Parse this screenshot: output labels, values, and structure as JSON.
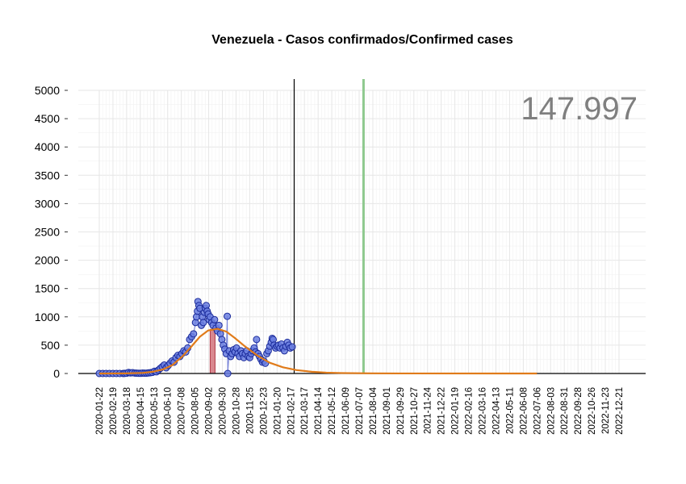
{
  "chart_data": {
    "type": "scatter",
    "title": "Venezuela - Casos confirmados/Confirmed cases",
    "xlabel": "",
    "ylabel": "",
    "total_label": "147.997",
    "ylim": [
      -200,
      5200
    ],
    "y_ticks": [
      0,
      500,
      1000,
      1500,
      2000,
      2500,
      3000,
      3500,
      4000,
      4500,
      5000
    ],
    "x_range": [
      "2020-01-22",
      "2022-12-21"
    ],
    "x_tick_labels": [
      "2020-01-22",
      "2020-02-19",
      "2020-03-18",
      "2020-04-15",
      "2020-05-13",
      "2020-06-10",
      "2020-07-08",
      "2020-08-05",
      "2020-09-02",
      "2020-09-30",
      "2020-10-28",
      "2020-11-25",
      "2020-12-23",
      "2021-01-20",
      "2021-02-17",
      "2021-03-17",
      "2021-04-14",
      "2021-05-12",
      "2021-06-09",
      "2021-07-07",
      "2021-08-04",
      "2021-09-01",
      "2021-09-29",
      "2021-10-27",
      "2021-11-24",
      "2021-12-22",
      "2022-01-19",
      "2022-02-16",
      "2022-03-16",
      "2022-04-13",
      "2022-05-11",
      "2022-06-08",
      "2022-07-06",
      "2022-08-03",
      "2022-08-31",
      "2022-09-28",
      "2022-10-26",
      "2022-11-23",
      "2022-12-21"
    ],
    "grid": true,
    "vertical_markers": [
      {
        "date": "2021-02-24",
        "color": "#000000"
      },
      {
        "date": "2021-07-16",
        "color": "#8fc98f"
      }
    ],
    "highlight_bar": {
      "start": "2020-09-05",
      "end": "2020-09-15",
      "value": 780,
      "color": "#d9888f"
    },
    "fit_curve": {
      "color": "#e07b1a",
      "points": [
        [
          "2020-01-22",
          0
        ],
        [
          "2020-03-15",
          2
        ],
        [
          "2020-04-20",
          10
        ],
        [
          "2020-05-10",
          30
        ],
        [
          "2020-05-31",
          70
        ],
        [
          "2020-06-20",
          150
        ],
        [
          "2020-07-10",
          300
        ],
        [
          "2020-07-28",
          470
        ],
        [
          "2020-08-15",
          650
        ],
        [
          "2020-09-01",
          760
        ],
        [
          "2020-09-20",
          790
        ],
        [
          "2020-10-08",
          740
        ],
        [
          "2020-10-25",
          630
        ],
        [
          "2020-11-15",
          480
        ],
        [
          "2020-12-10",
          320
        ],
        [
          "2021-01-05",
          190
        ],
        [
          "2021-02-01",
          110
        ],
        [
          "2021-03-01",
          60
        ],
        [
          "2021-04-01",
          30
        ],
        [
          "2021-05-01",
          15
        ],
        [
          "2021-06-01",
          8
        ],
        [
          "2021-08-01",
          3
        ],
        [
          "2021-10-01",
          1
        ],
        [
          "2022-07-06",
          0
        ]
      ]
    },
    "series": [
      {
        "name": "",
        "color": "#3d4ec8",
        "points": [
          [
            "2020-01-22",
            0
          ],
          [
            "2020-01-29",
            0
          ],
          [
            "2020-02-05",
            0
          ],
          [
            "2020-02-12",
            0
          ],
          [
            "2020-02-19",
            0
          ],
          [
            "2020-02-26",
            0
          ],
          [
            "2020-03-04",
            0
          ],
          [
            "2020-03-11",
            0
          ],
          [
            "2020-03-14",
            2
          ],
          [
            "2020-03-18",
            5
          ],
          [
            "2020-03-22",
            18
          ],
          [
            "2020-03-26",
            10
          ],
          [
            "2020-03-30",
            14
          ],
          [
            "2020-04-04",
            8
          ],
          [
            "2020-04-08",
            6
          ],
          [
            "2020-04-12",
            4
          ],
          [
            "2020-04-16",
            3
          ],
          [
            "2020-04-20",
            8
          ],
          [
            "2020-04-24",
            5
          ],
          [
            "2020-04-28",
            6
          ],
          [
            "2020-05-02",
            10
          ],
          [
            "2020-05-06",
            15
          ],
          [
            "2020-05-10",
            20
          ],
          [
            "2020-05-14",
            40
          ],
          [
            "2020-05-18",
            30
          ],
          [
            "2020-05-22",
            60
          ],
          [
            "2020-05-26",
            90
          ],
          [
            "2020-05-30",
            120
          ],
          [
            "2020-06-03",
            150
          ],
          [
            "2020-06-07",
            100
          ],
          [
            "2020-06-11",
            140
          ],
          [
            "2020-06-15",
            180
          ],
          [
            "2020-06-19",
            220
          ],
          [
            "2020-06-23",
            200
          ],
          [
            "2020-06-27",
            280
          ],
          [
            "2020-07-01",
            320
          ],
          [
            "2020-07-05",
            300
          ],
          [
            "2020-07-09",
            350
          ],
          [
            "2020-07-13",
            400
          ],
          [
            "2020-07-17",
            380
          ],
          [
            "2020-07-21",
            450
          ],
          [
            "2020-07-25",
            600
          ],
          [
            "2020-07-29",
            650
          ],
          [
            "2020-08-02",
            700
          ],
          [
            "2020-08-06",
            900
          ],
          [
            "2020-08-08",
            1000
          ],
          [
            "2020-08-10",
            1100
          ],
          [
            "2020-08-11",
            1270
          ],
          [
            "2020-08-13",
            1200
          ],
          [
            "2020-08-15",
            1150
          ],
          [
            "2020-08-18",
            850
          ],
          [
            "2020-08-20",
            1000
          ],
          [
            "2020-08-22",
            900
          ],
          [
            "2020-08-24",
            1080
          ],
          [
            "2020-08-26",
            1150
          ],
          [
            "2020-08-28",
            1200
          ],
          [
            "2020-08-30",
            1100
          ],
          [
            "2020-09-01",
            1050
          ],
          [
            "2020-09-03",
            950
          ],
          [
            "2020-09-05",
            1000
          ],
          [
            "2020-09-08",
            900
          ],
          [
            "2020-09-11",
            850
          ],
          [
            "2020-09-14",
            950
          ],
          [
            "2020-09-17",
            800
          ],
          [
            "2020-09-20",
            750
          ],
          [
            "2020-09-23",
            850
          ],
          [
            "2020-09-26",
            700
          ],
          [
            "2020-09-29",
            600
          ],
          [
            "2020-10-02",
            500
          ],
          [
            "2020-10-05",
            430
          ],
          [
            "2020-10-08",
            350
          ],
          [
            "2020-10-10",
            1010
          ],
          [
            "2020-10-11",
            0
          ],
          [
            "2020-10-14",
            400
          ],
          [
            "2020-10-17",
            300
          ],
          [
            "2020-10-20",
            350
          ],
          [
            "2020-10-23",
            420
          ],
          [
            "2020-10-26",
            380
          ],
          [
            "2020-10-29",
            450
          ],
          [
            "2020-11-01",
            350
          ],
          [
            "2020-11-04",
            300
          ],
          [
            "2020-11-07",
            400
          ],
          [
            "2020-11-10",
            350
          ],
          [
            "2020-11-13",
            280
          ],
          [
            "2020-11-16",
            350
          ],
          [
            "2020-11-19",
            400
          ],
          [
            "2020-11-22",
            300
          ],
          [
            "2020-11-25",
            280
          ],
          [
            "2020-11-28",
            350
          ],
          [
            "2020-12-01",
            400
          ],
          [
            "2020-12-04",
            450
          ],
          [
            "2020-12-07",
            380
          ],
          [
            "2020-12-09",
            600
          ],
          [
            "2020-12-12",
            350
          ],
          [
            "2020-12-15",
            300
          ],
          [
            "2020-12-18",
            250
          ],
          [
            "2020-12-21",
            200
          ],
          [
            "2020-12-24",
            220
          ],
          [
            "2020-12-27",
            180
          ],
          [
            "2020-12-30",
            350
          ],
          [
            "2021-01-02",
            400
          ],
          [
            "2021-01-05",
            480
          ],
          [
            "2021-01-08",
            550
          ],
          [
            "2021-01-10",
            620
          ],
          [
            "2021-01-12",
            600
          ],
          [
            "2021-01-14",
            500
          ],
          [
            "2021-01-17",
            450
          ],
          [
            "2021-01-20",
            480
          ],
          [
            "2021-01-23",
            500
          ],
          [
            "2021-01-26",
            450
          ],
          [
            "2021-01-29",
            520
          ],
          [
            "2021-02-01",
            450
          ],
          [
            "2021-02-04",
            400
          ],
          [
            "2021-02-07",
            480
          ],
          [
            "2021-02-10",
            550
          ],
          [
            "2021-02-13",
            500
          ],
          [
            "2021-02-16",
            450
          ],
          [
            "2021-02-20",
            470
          ]
        ]
      }
    ]
  }
}
